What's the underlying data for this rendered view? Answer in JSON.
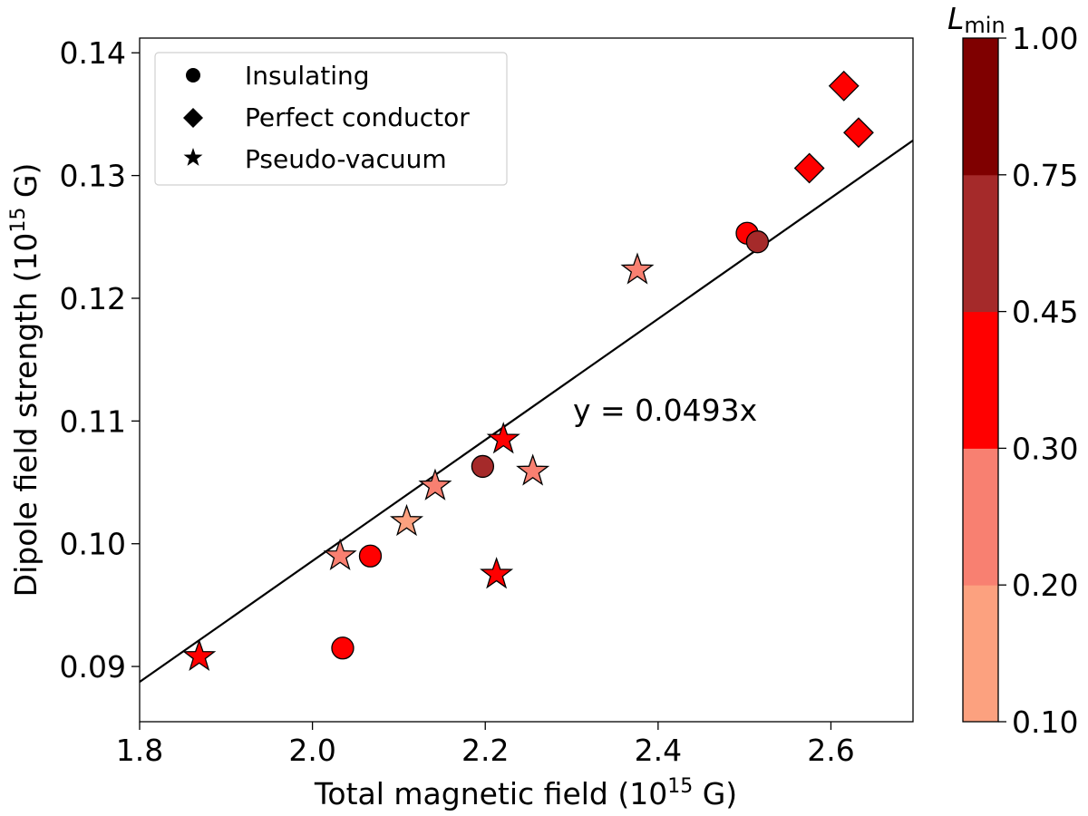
{
  "chart_data": {
    "type": "scatter",
    "title": "",
    "xlabel": {
      "main": "Total magnetic field (10",
      "sup": "15",
      "tail": " G)"
    },
    "ylabel": {
      "main": "Dipole field strength (10",
      "sup": "15",
      "tail": " G)"
    },
    "xlim": [
      1.8,
      2.695
    ],
    "ylim": [
      0.0855,
      0.1412
    ],
    "xticks": [
      1.8,
      2.0,
      2.2,
      2.4,
      2.6
    ],
    "xtick_labels": [
      "1.8",
      "2.0",
      "2.2",
      "2.4",
      "2.6"
    ],
    "yticks": [
      0.09,
      0.1,
      0.11,
      0.12,
      0.13,
      0.14
    ],
    "ytick_labels": [
      "0.09",
      "0.10",
      "0.11",
      "0.12",
      "0.13",
      "0.14"
    ],
    "grid": false,
    "legend_position": "top-left",
    "legend": [
      {
        "marker": "circle",
        "label": "Insulating"
      },
      {
        "marker": "diamond",
        "label": "Perfect conductor"
      },
      {
        "marker": "star",
        "label": "Pseudo-vacuum"
      }
    ],
    "fit_line": {
      "slope": 0.0493,
      "label": "y = 0.0493x"
    },
    "colorbar": {
      "label": "L",
      "label_sub": "min",
      "bounds": [
        0.1,
        0.2,
        0.3,
        0.45,
        0.75,
        1.0
      ],
      "tick_labels": [
        "0.10",
        "0.20",
        "0.30",
        "0.45",
        "0.75",
        "1.00"
      ],
      "colors": [
        "#fca17f",
        "#f88071",
        "#ff0000",
        "#a52a2a",
        "#7f0000"
      ]
    },
    "points": [
      {
        "series": "Insulating",
        "x": 2.035,
        "y": 0.0915,
        "color": "#ff0000"
      },
      {
        "series": "Insulating",
        "x": 2.067,
        "y": 0.099,
        "color": "#ff0000"
      },
      {
        "series": "Insulating",
        "x": 2.197,
        "y": 0.1063,
        "color": "#a52a2a"
      },
      {
        "series": "Insulating",
        "x": 2.503,
        "y": 0.1253,
        "color": "#ff0000"
      },
      {
        "series": "Insulating",
        "x": 2.515,
        "y": 0.1246,
        "color": "#a52a2a"
      },
      {
        "series": "Perfect conductor",
        "x": 2.575,
        "y": 0.1306,
        "color": "#ff0000"
      },
      {
        "series": "Perfect conductor",
        "x": 2.615,
        "y": 0.1373,
        "color": "#ff0000"
      },
      {
        "series": "Perfect conductor",
        "x": 2.632,
        "y": 0.1335,
        "color": "#ff0000"
      },
      {
        "series": "Pseudo-vacuum",
        "x": 1.869,
        "y": 0.0908,
        "color": "#ff0000"
      },
      {
        "series": "Pseudo-vacuum",
        "x": 2.032,
        "y": 0.099,
        "color": "#f88071"
      },
      {
        "series": "Pseudo-vacuum",
        "x": 2.109,
        "y": 0.1018,
        "color": "#fca17f"
      },
      {
        "series": "Pseudo-vacuum",
        "x": 2.142,
        "y": 0.1047,
        "color": "#f88071"
      },
      {
        "series": "Pseudo-vacuum",
        "x": 2.213,
        "y": 0.0975,
        "color": "#ff0000"
      },
      {
        "series": "Pseudo-vacuum",
        "x": 2.221,
        "y": 0.1085,
        "color": "#ff0000"
      },
      {
        "series": "Pseudo-vacuum",
        "x": 2.255,
        "y": 0.1059,
        "color": "#f88071"
      },
      {
        "series": "Pseudo-vacuum",
        "x": 2.376,
        "y": 0.1223,
        "color": "#f88071"
      }
    ]
  }
}
